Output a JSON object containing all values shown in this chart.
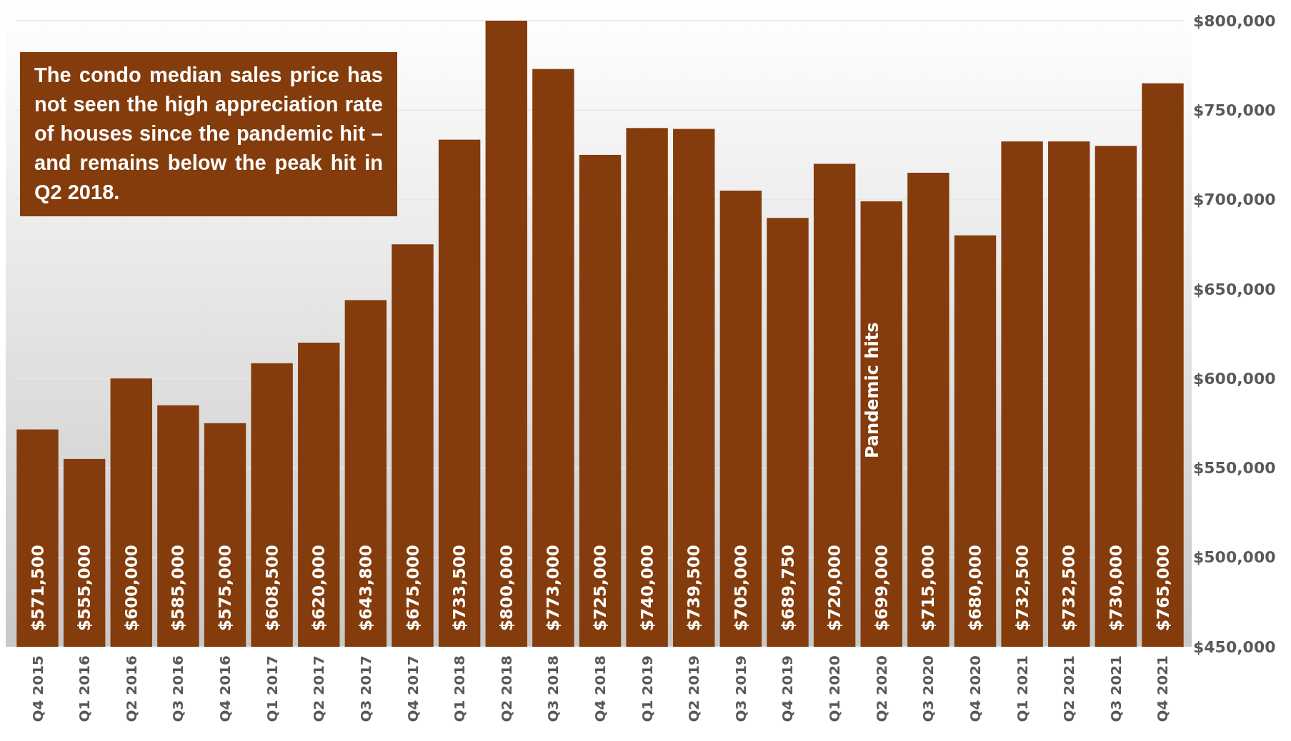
{
  "chart_data": {
    "type": "bar",
    "categories": [
      "Q4 2015",
      "Q1 2016",
      "Q2 2016",
      "Q3 2016",
      "Q4 2016",
      "Q1 2017",
      "Q2 2017",
      "Q3 2017",
      "Q4 2017",
      "Q1 2018",
      "Q2 2018",
      "Q3 2018",
      "Q4 2018",
      "Q1 2019",
      "Q2 2019",
      "Q3 2019",
      "Q4 2019",
      "Q1 2020",
      "Q2 2020",
      "Q3 2020",
      "Q4 2020",
      "Q1 2021",
      "Q2 2021",
      "Q3 2021",
      "Q4 2021"
    ],
    "values": [
      571500,
      555000,
      600000,
      585000,
      575000,
      608500,
      620000,
      643800,
      675000,
      733500,
      800000,
      773000,
      725000,
      740000,
      739500,
      705000,
      689750,
      720000,
      699000,
      715000,
      680000,
      732500,
      732500,
      730000,
      765000
    ],
    "value_labels": [
      "$571,500",
      "$555,000",
      "$600,000",
      "$585,000",
      "$575,000",
      "$608,500",
      "$620,000",
      "$643,800",
      "$675,000",
      "$733,500",
      "$800,000",
      "$773,000",
      "$725,000",
      "$740,000",
      "$739,500",
      "$705,000",
      "$689,750",
      "$720,000",
      "$699,000",
      "$715,000",
      "$680,000",
      "$732,500",
      "$732,500",
      "$730,000",
      "$765,000"
    ],
    "color": "#843c0c",
    "ylim": [
      450000,
      800000
    ],
    "yticks": [
      {
        "value": 450000,
        "label": "$450,000"
      },
      {
        "value": 500000,
        "label": "$500,000"
      },
      {
        "value": 550000,
        "label": "$550,000"
      },
      {
        "value": 600000,
        "label": "$600,000"
      },
      {
        "value": 650000,
        "label": "$650,000"
      },
      {
        "value": 700000,
        "label": "$700,000"
      },
      {
        "value": 750000,
        "label": "$750,000"
      },
      {
        "value": 800000,
        "label": "$800,000"
      }
    ],
    "grid": "y",
    "annotations": [
      "The condo median sales price has not seen the high appreciation rate of houses since the pandemic hit – and remains below the peak hit in Q2 2018.",
      "Pandemic hits"
    ]
  }
}
